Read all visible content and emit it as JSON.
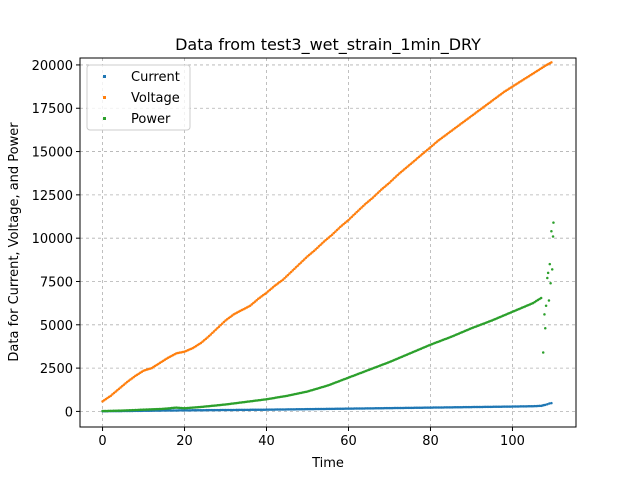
{
  "chart_data": {
    "type": "scatter",
    "title": "Data from test3_wet_strain_1min_DRY",
    "xlabel": "Time",
    "ylabel": "Data for Current, Voltage, and Power",
    "xlim": [
      -5.5,
      115.5
    ],
    "ylim": [
      -900,
      20400
    ],
    "xticks": [
      0,
      20,
      40,
      60,
      80,
      100
    ],
    "yticks": [
      0,
      2500,
      5000,
      7500,
      10000,
      12500,
      15000,
      17500,
      20000
    ],
    "grid": true,
    "legend_position": "top-left",
    "series": [
      {
        "name": "Current",
        "color": "#1f77b4",
        "points": [
          [
            0,
            10
          ],
          [
            5,
            20
          ],
          [
            10,
            35
          ],
          [
            15,
            50
          ],
          [
            20,
            60
          ],
          [
            25,
            70
          ],
          [
            30,
            80
          ],
          [
            35,
            90
          ],
          [
            40,
            100
          ],
          [
            45,
            115
          ],
          [
            50,
            130
          ],
          [
            55,
            145
          ],
          [
            60,
            160
          ],
          [
            65,
            175
          ],
          [
            70,
            190
          ],
          [
            75,
            205
          ],
          [
            80,
            220
          ],
          [
            85,
            235
          ],
          [
            90,
            250
          ],
          [
            95,
            265
          ],
          [
            100,
            280
          ],
          [
            105,
            300
          ],
          [
            107,
            320
          ],
          [
            108,
            380
          ],
          [
            108.5,
            410
          ],
          [
            109,
            460
          ],
          [
            109.5,
            480
          ]
        ]
      },
      {
        "name": "Voltage",
        "color": "#ff7f0e",
        "points": [
          [
            0,
            580
          ],
          [
            2,
            900
          ],
          [
            4,
            1300
          ],
          [
            6,
            1700
          ],
          [
            8,
            2050
          ],
          [
            10,
            2350
          ],
          [
            12,
            2500
          ],
          [
            14,
            2800
          ],
          [
            16,
            3100
          ],
          [
            18,
            3350
          ],
          [
            20,
            3450
          ],
          [
            22,
            3650
          ],
          [
            24,
            3950
          ],
          [
            26,
            4350
          ],
          [
            28,
            4800
          ],
          [
            30,
            5250
          ],
          [
            32,
            5600
          ],
          [
            34,
            5850
          ],
          [
            36,
            6100
          ],
          [
            38,
            6500
          ],
          [
            40,
            6850
          ],
          [
            42,
            7250
          ],
          [
            44,
            7600
          ],
          [
            46,
            8050
          ],
          [
            48,
            8500
          ],
          [
            50,
            8950
          ],
          [
            52,
            9350
          ],
          [
            54,
            9800
          ],
          [
            56,
            10200
          ],
          [
            58,
            10650
          ],
          [
            60,
            11050
          ],
          [
            62,
            11500
          ],
          [
            64,
            11950
          ],
          [
            66,
            12350
          ],
          [
            68,
            12800
          ],
          [
            70,
            13200
          ],
          [
            72,
            13650
          ],
          [
            74,
            14050
          ],
          [
            76,
            14450
          ],
          [
            78,
            14850
          ],
          [
            80,
            15250
          ],
          [
            82,
            15650
          ],
          [
            84,
            16000
          ],
          [
            86,
            16350
          ],
          [
            88,
            16700
          ],
          [
            90,
            17050
          ],
          [
            92,
            17400
          ],
          [
            94,
            17750
          ],
          [
            96,
            18100
          ],
          [
            98,
            18450
          ],
          [
            100,
            18750
          ],
          [
            102,
            19050
          ],
          [
            104,
            19350
          ],
          [
            106,
            19650
          ],
          [
            108,
            19950
          ],
          [
            109.5,
            20150
          ]
        ]
      },
      {
        "name": "Power",
        "color": "#2ca02c",
        "points": [
          [
            0,
            20
          ],
          [
            5,
            50
          ],
          [
            10,
            100
          ],
          [
            15,
            150
          ],
          [
            18,
            220
          ],
          [
            20,
            180
          ],
          [
            25,
            280
          ],
          [
            30,
            400
          ],
          [
            35,
            550
          ],
          [
            40,
            700
          ],
          [
            45,
            900
          ],
          [
            50,
            1150
          ],
          [
            55,
            1500
          ],
          [
            60,
            1950
          ],
          [
            65,
            2400
          ],
          [
            70,
            2850
          ],
          [
            75,
            3350
          ],
          [
            80,
            3850
          ],
          [
            85,
            4300
          ],
          [
            90,
            4800
          ],
          [
            95,
            5250
          ],
          [
            100,
            5750
          ],
          [
            105,
            6250
          ],
          [
            107,
            6550
          ],
          [
            107.5,
            3400
          ],
          [
            107.8,
            5600
          ],
          [
            108,
            4800
          ],
          [
            108.2,
            6100
          ],
          [
            108.5,
            7700
          ],
          [
            108.7,
            8000
          ],
          [
            108.9,
            6400
          ],
          [
            109.1,
            8500
          ],
          [
            109.3,
            7400
          ],
          [
            109.5,
            10400
          ],
          [
            109.7,
            8200
          ],
          [
            109.9,
            10100
          ],
          [
            110,
            10900
          ]
        ]
      }
    ]
  }
}
